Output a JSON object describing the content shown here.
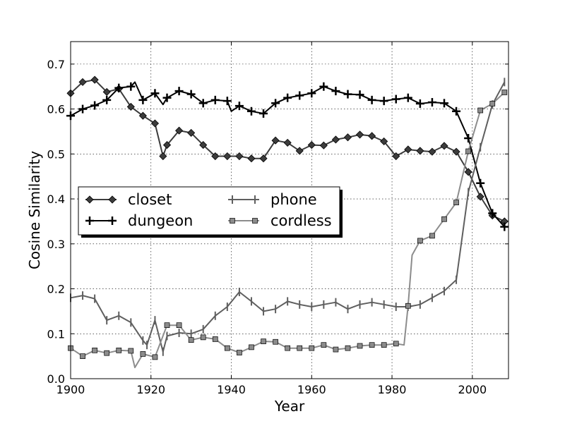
{
  "chart_data": {
    "type": "line",
    "xlabel": "Year",
    "ylabel": "Cosine Similarity",
    "xlim": [
      1900,
      2009
    ],
    "ylim": [
      0.0,
      0.75
    ],
    "xticks": [
      1900,
      1920,
      1940,
      1960,
      1980,
      2000
    ],
    "xtick_labels": [
      "1900",
      "1920",
      "1940",
      "1960",
      "1980",
      "2000"
    ],
    "yticks": [
      0.0,
      0.1,
      0.2,
      0.3,
      0.4,
      0.5,
      0.6,
      0.7
    ],
    "ytick_labels": [
      "0.0",
      "0.1",
      "0.2",
      "0.3",
      "0.4",
      "0.5",
      "0.6",
      "0.7"
    ],
    "grid": true,
    "legend_position": "center-left",
    "legend_columns": 2,
    "series": [
      {
        "name": "closet",
        "color": "#3c3c3c",
        "marker": "diamond",
        "x": [
          1900,
          1903,
          1906,
          1909,
          1912,
          1915,
          1918,
          1921,
          1923,
          1924,
          1927,
          1930,
          1933,
          1936,
          1939,
          1942,
          1945,
          1948,
          1951,
          1954,
          1957,
          1960,
          1963,
          1966,
          1969,
          1972,
          1975,
          1978,
          1981,
          1984,
          1987,
          1990,
          1993,
          1996,
          1999,
          2002,
          2005,
          2008
        ],
        "y": [
          0.635,
          0.66,
          0.665,
          0.638,
          0.645,
          0.605,
          0.585,
          0.568,
          0.495,
          0.52,
          0.552,
          0.547,
          0.52,
          0.495,
          0.495,
          0.495,
          0.49,
          0.49,
          0.53,
          0.525,
          0.507,
          0.52,
          0.519,
          0.532,
          0.537,
          0.543,
          0.54,
          0.528,
          0.495,
          0.51,
          0.507,
          0.505,
          0.518,
          0.505,
          0.46,
          0.405,
          0.363,
          0.35
        ],
        "marker_every": 1
      },
      {
        "name": "dungeon",
        "color": "#000000",
        "marker": "plus",
        "x": [
          1900,
          1903,
          1906,
          1909,
          1912,
          1915,
          1916,
          1918,
          1921,
          1923,
          1924,
          1927,
          1930,
          1933,
          1936,
          1939,
          1940,
          1942,
          1945,
          1948,
          1951,
          1954,
          1957,
          1960,
          1963,
          1966,
          1969,
          1972,
          1975,
          1978,
          1981,
          1984,
          1987,
          1990,
          1993,
          1996,
          1999,
          2002,
          2005,
          2008
        ],
        "y": [
          0.585,
          0.6,
          0.608,
          0.62,
          0.647,
          0.65,
          0.66,
          0.62,
          0.635,
          0.61,
          0.625,
          0.64,
          0.633,
          0.613,
          0.62,
          0.618,
          0.595,
          0.607,
          0.595,
          0.59,
          0.613,
          0.625,
          0.63,
          0.635,
          0.65,
          0.64,
          0.633,
          0.632,
          0.62,
          0.618,
          0.622,
          0.625,
          0.612,
          0.615,
          0.613,
          0.595,
          0.535,
          0.435,
          0.368,
          0.338
        ],
        "marker_x": [
          1900,
          1903,
          1906,
          1909,
          1912,
          1915,
          1918,
          1921,
          1924,
          1927,
          1930,
          1933,
          1936,
          1939,
          1942,
          1945,
          1948,
          1951,
          1954,
          1957,
          1960,
          1963,
          1966,
          1969,
          1972,
          1975,
          1978,
          1981,
          1984,
          1987,
          1990,
          1993,
          1996,
          1999,
          2002,
          2005,
          2008
        ]
      },
      {
        "name": "phone",
        "color": "#5f5f5f",
        "marker": "vline",
        "x": [
          1900,
          1903,
          1906,
          1909,
          1912,
          1915,
          1918,
          1919,
          1921,
          1923,
          1924,
          1927,
          1930,
          1933,
          1936,
          1939,
          1942,
          1945,
          1948,
          1951,
          1954,
          1957,
          1960,
          1963,
          1966,
          1969,
          1972,
          1975,
          1978,
          1981,
          1984,
          1987,
          1990,
          1993,
          1996,
          1999,
          2002,
          2005,
          2008
        ],
        "y": [
          0.18,
          0.185,
          0.178,
          0.13,
          0.14,
          0.125,
          0.085,
          0.075,
          0.13,
          0.06,
          0.095,
          0.102,
          0.1,
          0.11,
          0.14,
          0.16,
          0.193,
          0.172,
          0.15,
          0.155,
          0.172,
          0.165,
          0.16,
          0.165,
          0.17,
          0.155,
          0.165,
          0.17,
          0.165,
          0.16,
          0.16,
          0.165,
          0.18,
          0.195,
          0.22,
          0.415,
          0.515,
          0.61,
          0.66
        ],
        "marker_every": 1
      },
      {
        "name": "cordless",
        "color": "#8c8c8c",
        "marker": "square",
        "x": [
          1900,
          1903,
          1906,
          1909,
          1912,
          1915,
          1916,
          1918,
          1921,
          1924,
          1927,
          1930,
          1933,
          1936,
          1939,
          1942,
          1945,
          1948,
          1951,
          1954,
          1957,
          1960,
          1963,
          1966,
          1969,
          1972,
          1975,
          1978,
          1981,
          1983,
          1984,
          1985,
          1987,
          1990,
          1993,
          1996,
          1999,
          2002,
          2005,
          2008
        ],
        "y": [
          0.068,
          0.05,
          0.063,
          0.057,
          0.063,
          0.062,
          0.025,
          0.055,
          0.048,
          0.119,
          0.119,
          0.086,
          0.092,
          0.088,
          0.068,
          0.058,
          0.07,
          0.083,
          0.082,
          0.068,
          0.068,
          0.068,
          0.075,
          0.065,
          0.068,
          0.073,
          0.075,
          0.075,
          0.078,
          0.075,
          0.162,
          0.275,
          0.307,
          0.318,
          0.355,
          0.392,
          0.506,
          0.597,
          0.612,
          0.637
        ],
        "marker_x": [
          1900,
          1903,
          1906,
          1909,
          1912,
          1915,
          1918,
          1921,
          1924,
          1927,
          1930,
          1933,
          1936,
          1939,
          1942,
          1945,
          1948,
          1951,
          1954,
          1957,
          1960,
          1963,
          1966,
          1969,
          1972,
          1975,
          1978,
          1981,
          1984,
          1987,
          1990,
          1993,
          1996,
          1999,
          2002,
          2005,
          2008
        ]
      }
    ]
  }
}
